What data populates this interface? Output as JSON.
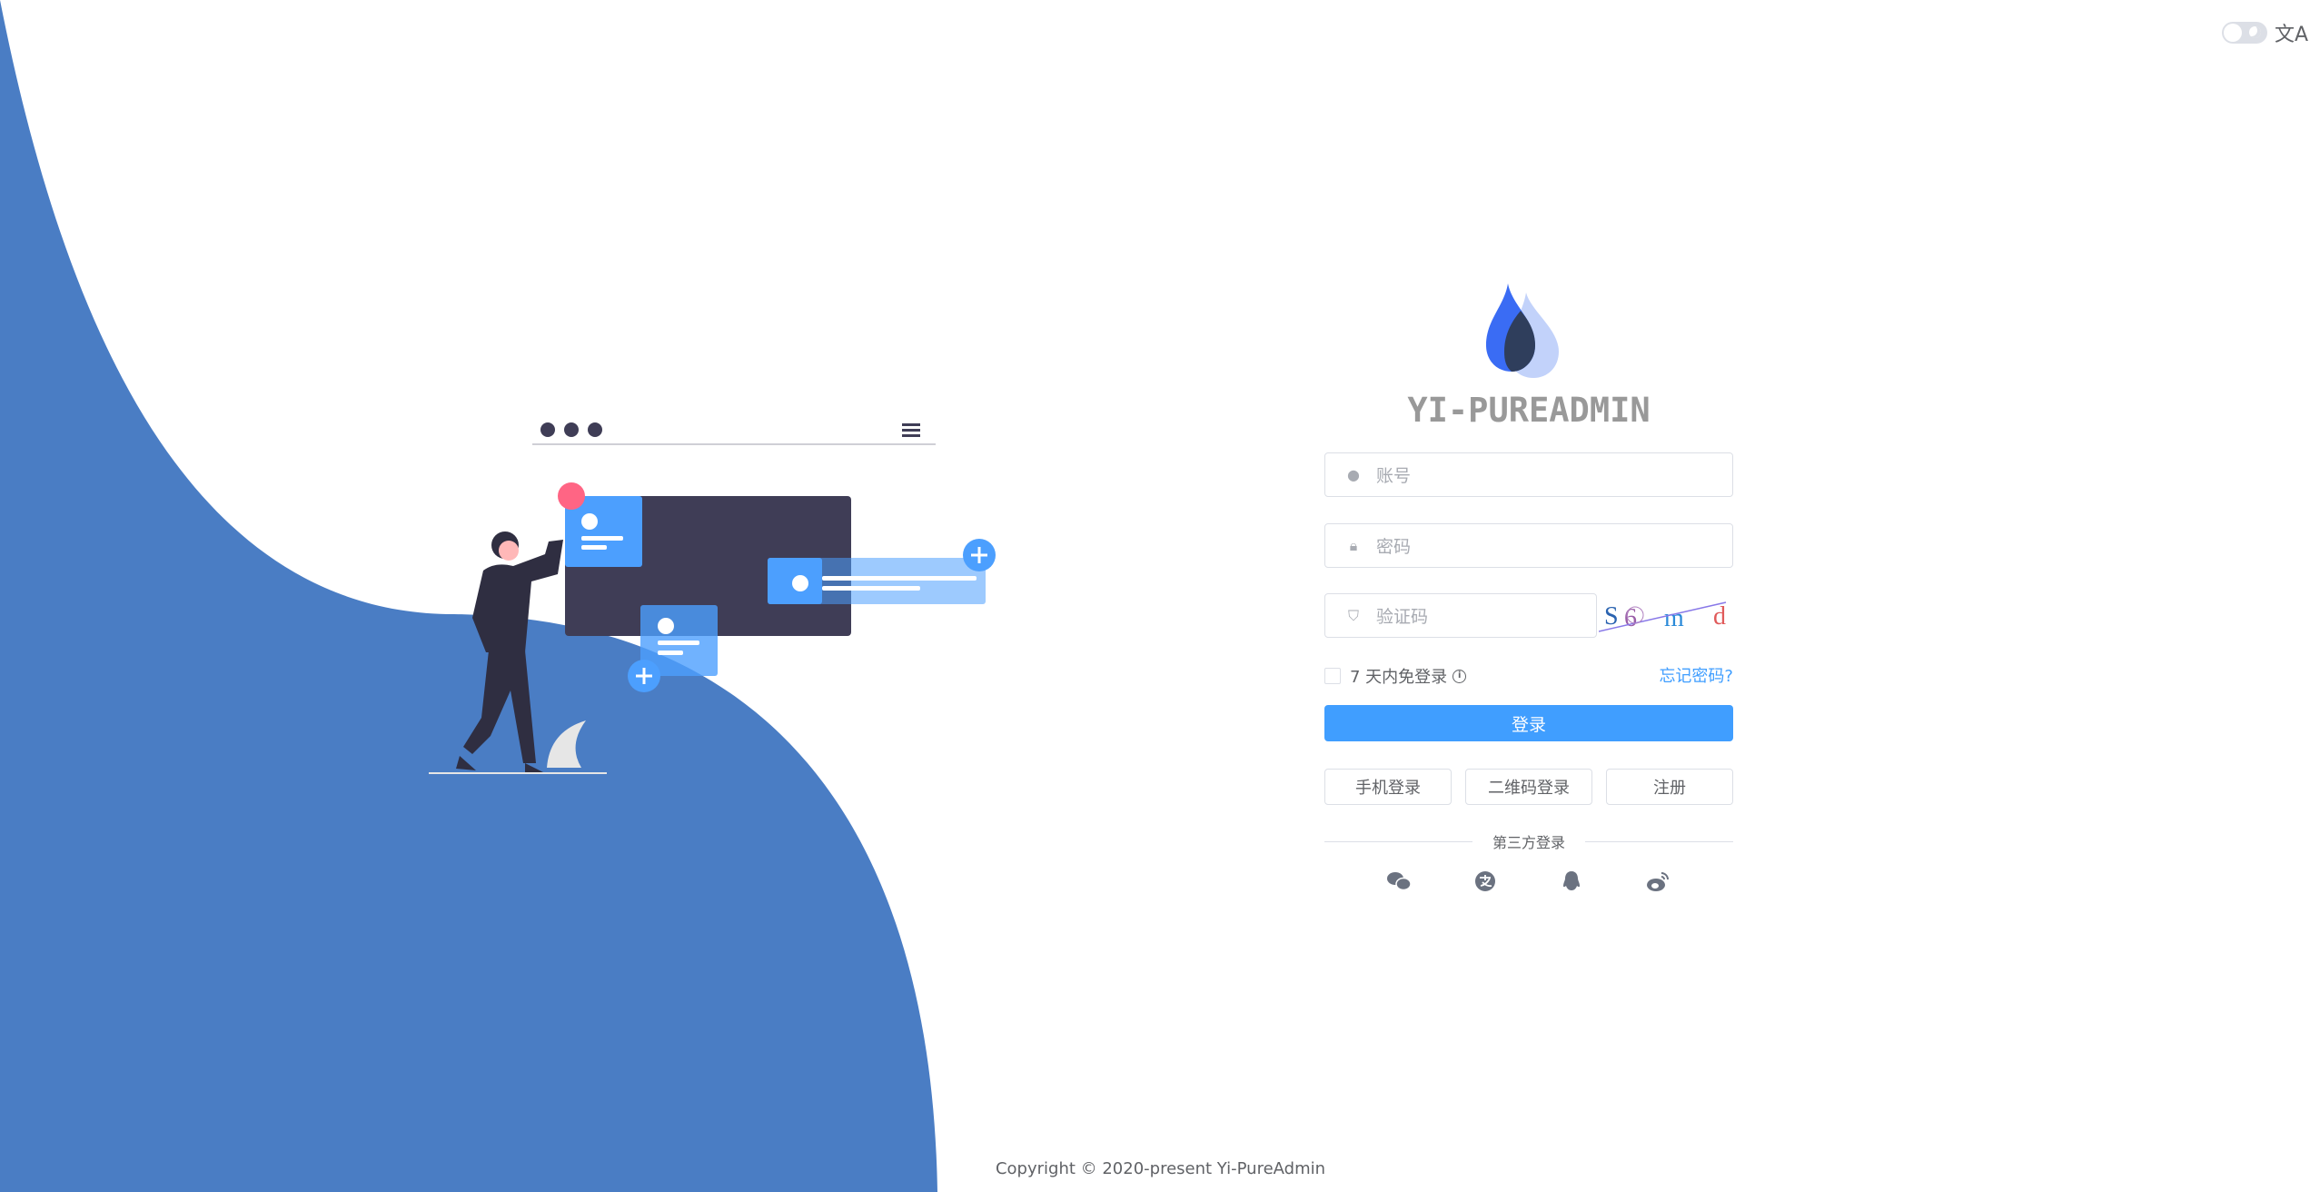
{
  "header": {
    "theme_toggle": "dark-mode-switch",
    "language_icon": "translate-icon",
    "language_glyph": "文A"
  },
  "brand": {
    "title": "YI-PUREADMIN"
  },
  "form": {
    "username_placeholder": "账号",
    "password_placeholder": "密码",
    "captcha_placeholder": "验证码",
    "captcha_text": [
      "S",
      "6",
      "m",
      "d"
    ],
    "remember_label": "7 天内免登录",
    "forgot_label": "忘记密码?",
    "login_label": "登录",
    "phone_login_label": "手机登录",
    "qrcode_login_label": "二维码登录",
    "register_label": "注册",
    "third_party_label": "第三方登录",
    "third_party_icons": [
      "wechat-icon",
      "alipay-icon",
      "qq-icon",
      "weibo-icon"
    ]
  },
  "footer": {
    "copyright": "Copyright © 2020-present Yi-PureAdmin"
  },
  "colors": {
    "accent": "#409eff",
    "wave": "#4a7dc4",
    "illustration_dark": "#3f3d56",
    "illustration_blue": "#4c9ffe",
    "illustration_pink": "#ff6584"
  }
}
